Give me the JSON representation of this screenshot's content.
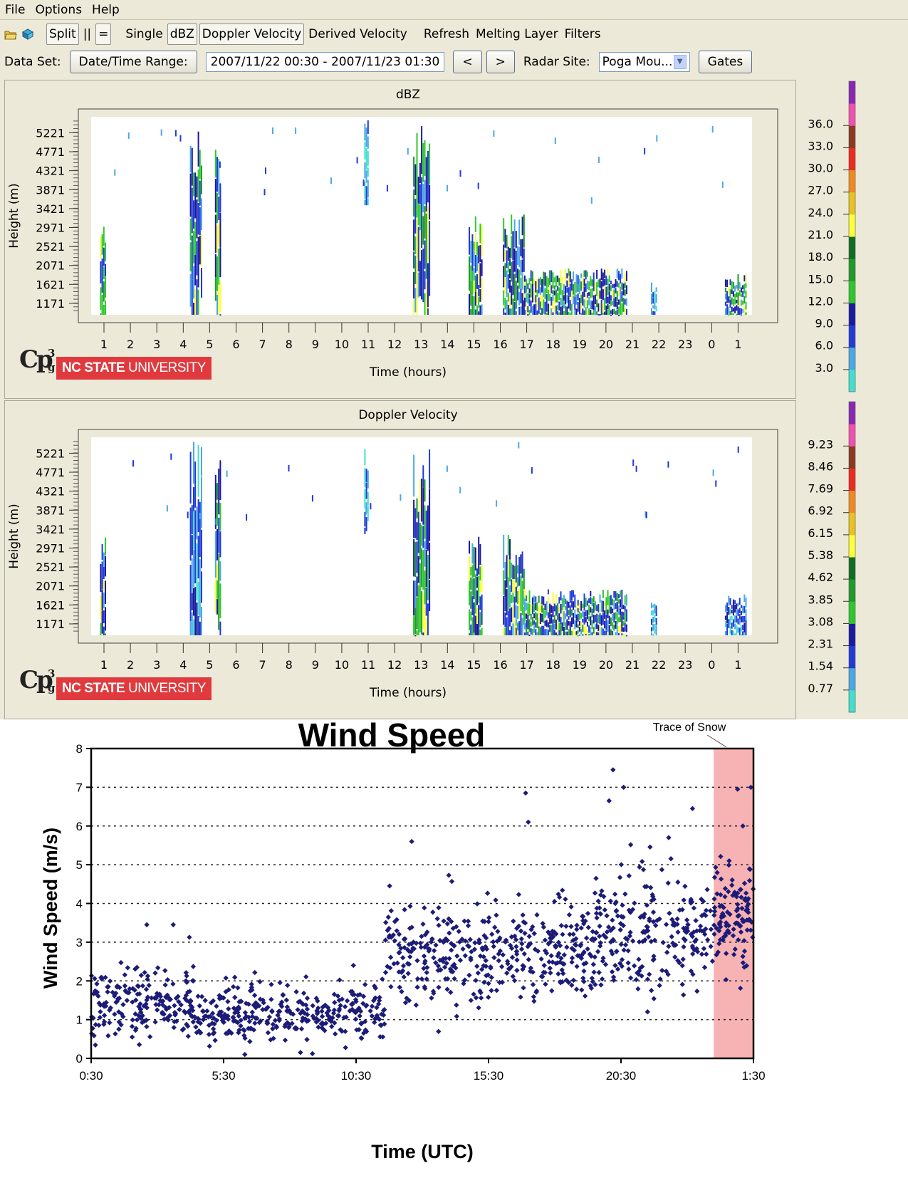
{
  "menu": [
    "File",
    "Options",
    "Help"
  ],
  "toolbar": {
    "icons": [
      "open-icon",
      "save-icon"
    ],
    "split_label": "Split",
    "vertical_label": "||",
    "horizontal_label": "=",
    "single_label": "Single",
    "dbz_label": "dBZ",
    "doppler_label": "Doppler Velocity",
    "derived_label": "Derived Velocity",
    "refresh_label": "Refresh",
    "melting_label": "Melting Layer",
    "filters_label": "Filters"
  },
  "dataset": {
    "label": "Data Set:",
    "range_button": "Date/Time Range:",
    "range_value": "2007/11/22 00:30 - 2007/11/23 01:30",
    "prev_label": "<",
    "next_label": ">",
    "site_label": "Radar Site:",
    "site_value": "Poga Mou...",
    "gates_label": "Gates"
  },
  "logo": {
    "cp": "Cp",
    "sup": "3",
    "sub": "g",
    "ncsu_bold": "NC STATE",
    "ncsu_light": " UNIVERSITY"
  },
  "colors": {
    "scale": [
      "#40e0d0",
      "#4aa8e8",
      "#1f3bd8",
      "#1a1aa0",
      "#2ec82e",
      "#1e9b2a",
      "#0f6e1f",
      "#ffff3a",
      "#e8c21e",
      "#f08a1e",
      "#f02a1e",
      "#8a3a1e",
      "#f050b0",
      "#8a28b4"
    ],
    "marker": "#1c1c78",
    "snow_band": "#f7b3b3"
  },
  "radar_panels": [
    {
      "id": "dbz",
      "chart_data": {
        "type": "heatmap",
        "title": "dBZ",
        "xlabel": "Time (hours)",
        "ylabel": "Height (m)",
        "x_ticks": [
          "1",
          "2",
          "3",
          "4",
          "5",
          "6",
          "7",
          "8",
          "9",
          "10",
          "11",
          "12",
          "13",
          "14",
          "15",
          "16",
          "17",
          "18",
          "19",
          "20",
          "21",
          "22",
          "23",
          "0",
          "1"
        ],
        "y_ticks": [
          "1171",
          "1621",
          "2071",
          "2521",
          "2971",
          "3421",
          "3871",
          "4321",
          "4771",
          "5221"
        ],
        "colorbar_ticks": [
          "3.0",
          "6.0",
          "9.0",
          "12.0",
          "15.0",
          "18.0",
          "21.0",
          "24.0",
          "27.0",
          "30.0",
          "33.0",
          "36.0"
        ],
        "echo_columns": [
          {
            "t0": 0.85,
            "t1": 1.05,
            "h_top": 3300,
            "h_bottom": 900,
            "level": "mixed"
          },
          {
            "t0": 4.25,
            "t1": 4.7,
            "h_top": 5600,
            "h_bottom": 900,
            "level": "mixed"
          },
          {
            "t0": 5.2,
            "t1": 5.4,
            "h_top": 5200,
            "h_bottom": 900,
            "level": "mixed"
          },
          {
            "t0": 10.85,
            "t1": 11.0,
            "h_top": 5600,
            "h_bottom": 3500,
            "level": "weak"
          },
          {
            "t0": 12.7,
            "t1": 13.3,
            "h_top": 5400,
            "h_bottom": 900,
            "level": "mixed"
          },
          {
            "t0": 14.8,
            "t1": 15.3,
            "h_top": 3300,
            "h_bottom": 900,
            "level": "mixed"
          },
          {
            "t0": 16.1,
            "t1": 16.9,
            "h_top": 3300,
            "h_bottom": 900,
            "level": "mixed"
          },
          {
            "t0": 16.9,
            "t1": 20.8,
            "h_top": 2000,
            "h_bottom": 900,
            "level": "mixed"
          },
          {
            "t0": 21.7,
            "t1": 21.9,
            "h_top": 1700,
            "h_bottom": 900,
            "level": "weak"
          },
          {
            "t0": 24.5,
            "t1": 25.3,
            "h_top": 1900,
            "h_bottom": 900,
            "level": "mixed"
          }
        ]
      }
    },
    {
      "id": "doppler",
      "chart_data": {
        "type": "heatmap",
        "title": "Doppler Velocity",
        "xlabel": "Time (hours)",
        "ylabel": "Height (m)",
        "x_ticks": [
          "1",
          "2",
          "3",
          "4",
          "5",
          "6",
          "7",
          "8",
          "9",
          "10",
          "11",
          "12",
          "13",
          "14",
          "15",
          "16",
          "17",
          "18",
          "19",
          "20",
          "21",
          "22",
          "23",
          "0",
          "1"
        ],
        "y_ticks": [
          "1171",
          "1621",
          "2071",
          "2521",
          "2971",
          "3421",
          "3871",
          "4321",
          "4771",
          "5221"
        ],
        "colorbar_ticks": [
          "0.77",
          "1.54",
          "2.31",
          "3.08",
          "3.85",
          "4.62",
          "5.38",
          "6.15",
          "6.92",
          "7.69",
          "8.46",
          "9.23"
        ],
        "echo_columns": [
          {
            "t0": 0.85,
            "t1": 1.05,
            "h_top": 3300,
            "h_bottom": 900,
            "level": "mixed"
          },
          {
            "t0": 4.25,
            "t1": 4.7,
            "h_top": 5600,
            "h_bottom": 900,
            "level": "strong-blue"
          },
          {
            "t0": 5.2,
            "t1": 5.4,
            "h_top": 5200,
            "h_bottom": 900,
            "level": "mixed"
          },
          {
            "t0": 10.85,
            "t1": 11.0,
            "h_top": 5600,
            "h_bottom": 3300,
            "level": "weak"
          },
          {
            "t0": 12.7,
            "t1": 13.3,
            "h_top": 5400,
            "h_bottom": 900,
            "level": "mixed"
          },
          {
            "t0": 14.8,
            "t1": 15.3,
            "h_top": 3300,
            "h_bottom": 900,
            "level": "mixed"
          },
          {
            "t0": 16.1,
            "t1": 16.9,
            "h_top": 3300,
            "h_bottom": 900,
            "level": "mixed"
          },
          {
            "t0": 16.9,
            "t1": 20.8,
            "h_top": 2000,
            "h_bottom": 900,
            "level": "mixed"
          },
          {
            "t0": 21.7,
            "t1": 21.9,
            "h_top": 1700,
            "h_bottom": 900,
            "level": "weak"
          },
          {
            "t0": 24.5,
            "t1": 25.3,
            "h_top": 1900,
            "h_bottom": 900,
            "level": "strong-blue"
          }
        ]
      }
    }
  ],
  "chart_data": {
    "type": "scatter",
    "title": "Wind Speed",
    "xlabel": "Time (UTC)",
    "ylabel": "Wind Speed (m/s)",
    "xlim": [
      0.5,
      25.5
    ],
    "ylim": [
      0,
      8
    ],
    "x_ticks": [
      "0:30",
      "5:30",
      "10:30",
      "15:30",
      "20:30",
      "1:30"
    ],
    "y_ticks": [
      "0",
      "1",
      "2",
      "3",
      "4",
      "5",
      "6",
      "7",
      "8"
    ],
    "grid": "horizontal dotted",
    "annotation": "Trace of Snow",
    "highlight_band": {
      "x0": 24.0,
      "x1": 25.5,
      "label": "Trace of Snow"
    },
    "segments": [
      {
        "x0": 0.5,
        "x1": 4.5,
        "mean": 1.4,
        "spread": 0.55,
        "count": 200
      },
      {
        "x0": 4.5,
        "x1": 11.6,
        "mean": 1.15,
        "spread": 0.45,
        "count": 320
      },
      {
        "x0": 11.6,
        "x1": 16.5,
        "mean": 2.6,
        "spread": 0.8,
        "count": 240
      },
      {
        "x0": 16.5,
        "x1": 19.5,
        "mean": 2.7,
        "spread": 0.8,
        "count": 160
      },
      {
        "x0": 19.5,
        "x1": 24.0,
        "mean": 3.2,
        "spread": 0.95,
        "count": 230
      },
      {
        "x0": 24.0,
        "x1": 25.5,
        "mean": 3.7,
        "spread": 0.9,
        "count": 110
      }
    ],
    "outliers": [
      {
        "x": 20.2,
        "y": 7.45
      },
      {
        "x": 20.6,
        "y": 7.0
      },
      {
        "x": 20.05,
        "y": 6.65
      },
      {
        "x": 16.9,
        "y": 6.85
      },
      {
        "x": 17.0,
        "y": 6.1
      },
      {
        "x": 12.6,
        "y": 5.6
      },
      {
        "x": 23.2,
        "y": 6.45
      },
      {
        "x": 25.4,
        "y": 7.0
      },
      {
        "x": 24.9,
        "y": 6.95
      },
      {
        "x": 25.1,
        "y": 6.0
      },
      {
        "x": 3.6,
        "y": 3.45
      },
      {
        "x": 2.6,
        "y": 3.45
      },
      {
        "x": 6.3,
        "y": 0.1
      },
      {
        "x": 8.4,
        "y": 0.15
      },
      {
        "x": 10.4,
        "y": 2.4
      },
      {
        "x": 21.5,
        "y": 1.2
      },
      {
        "x": 22.3,
        "y": 5.7
      }
    ]
  }
}
